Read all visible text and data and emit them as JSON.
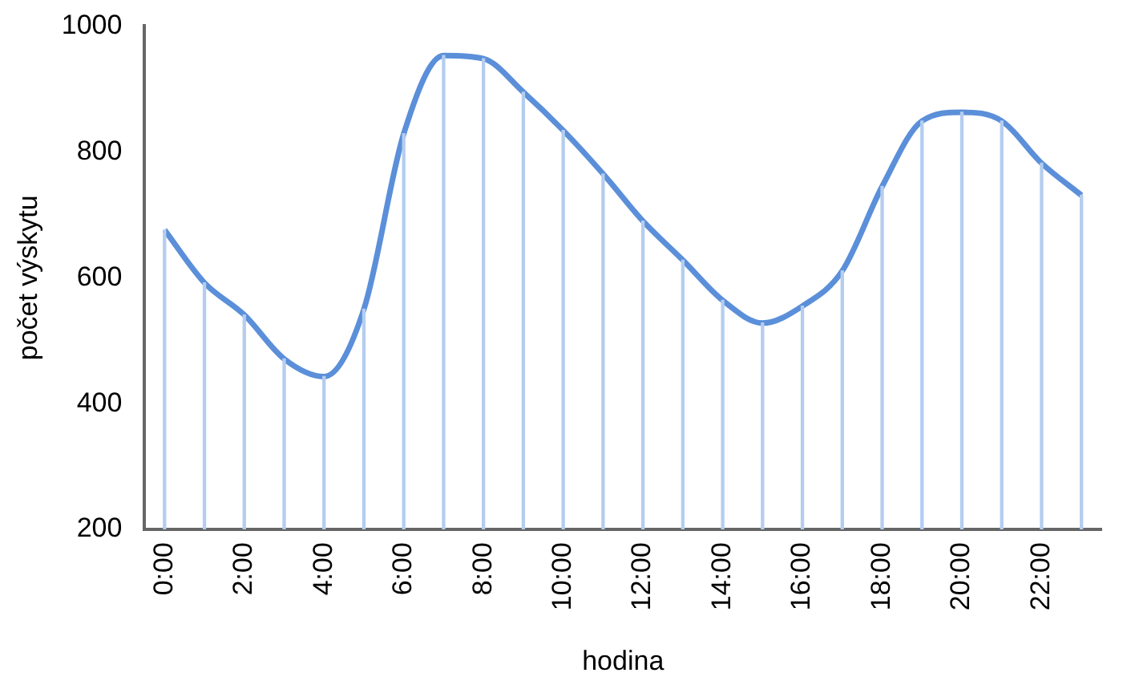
{
  "chart_data": {
    "type": "line",
    "xlabel": "hodina",
    "ylabel": "počet výskytu",
    "categories": [
      "0:00",
      null,
      "2:00",
      null,
      "4:00",
      null,
      "6:00",
      null,
      "8:00",
      null,
      "10:00",
      null,
      "12:00",
      null,
      "14:00",
      null,
      "16:00",
      null,
      "18:00",
      null,
      "20:00",
      null,
      "22:00",
      null
    ],
    "series": [
      {
        "color": "#5b8fd9",
        "values": [
          676,
          592,
          541,
          471,
          443,
          550,
          829,
          953,
          948,
          895,
          834,
          765,
          690,
          628,
          564,
          528,
          555,
          611,
          745,
          849,
          863,
          849,
          782,
          731
        ]
      },
      {
        "type": "bar",
        "color": "#b4cdef",
        "values": [
          676,
          592,
          541,
          471,
          443,
          550,
          829,
          953,
          948,
          895,
          834,
          765,
          690,
          628,
          564,
          528,
          555,
          611,
          745,
          849,
          863,
          849,
          782,
          731
        ]
      }
    ],
    "ylim": [
      200,
      1000
    ],
    "yticks": [
      200,
      400,
      600,
      800,
      1000
    ],
    "grid": false,
    "legend": false,
    "marker": "none",
    "line_style": "solid"
  }
}
